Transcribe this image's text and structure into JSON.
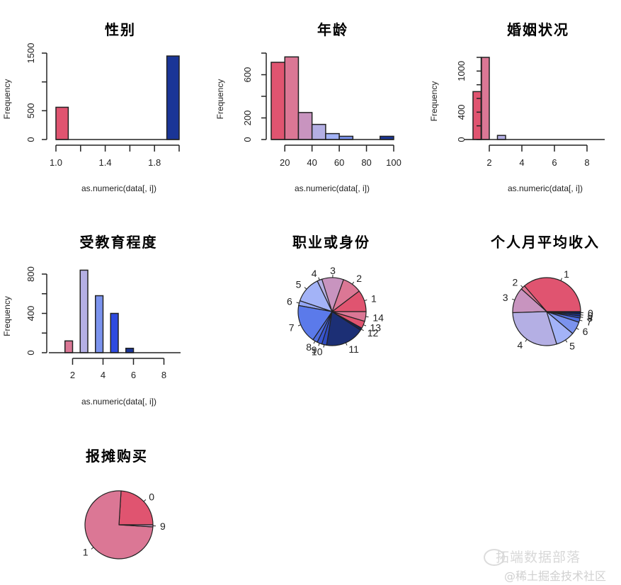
{
  "chart_data": [
    {
      "type": "bar",
      "subtype": "histogram",
      "title": "性别",
      "xlabel": "as.numeric(data[, i])",
      "ylabel": "Frequency",
      "bins": [
        [
          1.0,
          1.1
        ],
        [
          1.1,
          1.2
        ],
        [
          1.2,
          1.3
        ],
        [
          1.3,
          1.4
        ],
        [
          1.4,
          1.5
        ],
        [
          1.5,
          1.6
        ],
        [
          1.6,
          1.7
        ],
        [
          1.7,
          1.8
        ],
        [
          1.8,
          1.9
        ],
        [
          1.9,
          2.0
        ]
      ],
      "values": [
        560,
        0,
        0,
        0,
        0,
        0,
        0,
        0,
        0,
        1450
      ],
      "colors": [
        "#E05470",
        "#DB6F8F",
        "#D18AAE",
        "#BFA3CF",
        "#B3B2E6",
        "#A7B7F7",
        "#8199F0",
        "#5B7AEA",
        "#3652C9",
        "#1A3597"
      ],
      "xticks": [
        1.0,
        1.2,
        1.4,
        1.6,
        1.8,
        2.0
      ],
      "xtick_labels": [
        "1.0",
        "",
        "1.4",
        "",
        "1.8",
        ""
      ],
      "yticks": [
        0,
        500,
        1000,
        1500
      ],
      "ytick_labels": [
        "0",
        "500",
        "",
        "1500"
      ],
      "xlim": [
        1.0,
        2.0
      ],
      "ylim": [
        0,
        1500
      ]
    },
    {
      "type": "bar",
      "subtype": "histogram",
      "title": "年龄",
      "xlabel": "as.numeric(data[, i])",
      "ylabel": "Frequency",
      "bins": [
        [
          10,
          20
        ],
        [
          20,
          30
        ],
        [
          30,
          40
        ],
        [
          40,
          50
        ],
        [
          50,
          60
        ],
        [
          60,
          70
        ],
        [
          70,
          80
        ],
        [
          80,
          90
        ],
        [
          90,
          100
        ]
      ],
      "values": [
        715,
        765,
        250,
        140,
        55,
        30,
        0,
        0,
        30
      ],
      "colors": [
        "#E05470",
        "#DB7795",
        "#C894BF",
        "#B4AFE4",
        "#A3B3F7",
        "#7B93EE",
        "#4E6DE0",
        "#2F4BC0",
        "#1A3597"
      ],
      "xticks": [
        20,
        40,
        60,
        80,
        100
      ],
      "xtick_labels": [
        "20",
        "40",
        "60",
        "80",
        "100"
      ],
      "yticks": [
        0,
        200,
        400,
        600,
        800
      ],
      "ytick_labels": [
        "0",
        "200",
        "",
        "600",
        ""
      ],
      "xlim": [
        10,
        100
      ],
      "ylim": [
        0,
        800
      ]
    },
    {
      "type": "bar",
      "subtype": "histogram",
      "title": "婚姻状况",
      "xlabel": "as.numeric(data[, i])",
      "ylabel": "Frequency",
      "bins": [
        [
          1.0,
          1.5
        ],
        [
          1.5,
          2.0
        ],
        [
          2.0,
          2.5
        ],
        [
          2.5,
          3.0
        ],
        [
          3.0,
          3.5
        ],
        [
          3.5,
          4.0
        ],
        [
          4.0,
          4.5
        ],
        [
          4.5,
          5.0
        ],
        [
          5.0,
          5.5
        ],
        [
          5.5,
          6.0
        ],
        [
          6.0,
          6.5
        ],
        [
          6.5,
          7.0
        ],
        [
          7.0,
          7.5
        ],
        [
          7.5,
          8.0
        ],
        [
          8.0,
          8.5
        ],
        [
          8.5,
          9.0
        ]
      ],
      "values": [
        700,
        1200,
        0,
        60,
        0,
        0,
        0,
        0,
        0,
        0,
        0,
        0,
        0,
        0,
        0,
        0
      ],
      "colors": [
        "#E05470",
        "#DB7795",
        "#B4AFE4",
        "#B4AFE4",
        "#A3B3F7",
        "#A3B3F7",
        "#7B93EE",
        "#7B93EE",
        "#4E6DE0",
        "#4E6DE0",
        "#2F4BC0",
        "#2F4BC0",
        "#1A3597",
        "#1A3597",
        "#1A3597",
        "#1A3597"
      ],
      "xticks": [
        2,
        4,
        6,
        8
      ],
      "xtick_labels": [
        "2",
        "4",
        "6",
        "8"
      ],
      "yticks": [
        0,
        200,
        400,
        600,
        800,
        1000,
        1200
      ],
      "ytick_labels": [
        "0",
        "",
        "400",
        "",
        "",
        "1000",
        ""
      ],
      "xlim": [
        1,
        9
      ],
      "ylim": [
        0,
        1200
      ]
    },
    {
      "type": "bar",
      "subtype": "histogram",
      "title": "受教育程度",
      "xlabel": "as.numeric(data[, i])",
      "ylabel": "Frequency",
      "bins": [
        [
          1.5,
          2.0
        ],
        [
          2.0,
          2.5
        ],
        [
          2.5,
          3.0
        ],
        [
          3.0,
          3.5
        ],
        [
          3.5,
          4.0
        ],
        [
          4.0,
          4.5
        ],
        [
          4.5,
          5.0
        ],
        [
          5.0,
          5.5
        ],
        [
          5.5,
          6.0
        ],
        [
          6.0,
          6.5
        ],
        [
          6.5,
          7.0
        ],
        [
          7.0,
          7.5
        ],
        [
          7.5,
          8.0
        ],
        [
          8.0,
          8.5
        ],
        [
          8.5,
          9.0
        ]
      ],
      "values": [
        120,
        0,
        840,
        0,
        580,
        0,
        400,
        0,
        45,
        0,
        0,
        0,
        0,
        0,
        0
      ],
      "colors": [
        "#DB7795",
        "#000",
        "#B4AFE4",
        "#000",
        "#7B93EE",
        "#000",
        "#2F4BE0",
        "#000",
        "#1A3597",
        "#000",
        "#000",
        "#000",
        "#000",
        "#000",
        "#000"
      ],
      "xticks": [
        2,
        4,
        6,
        8
      ],
      "xtick_labels": [
        "2",
        "4",
        "6",
        "8"
      ],
      "yticks": [
        0,
        200,
        400,
        600,
        800
      ],
      "ytick_labels": [
        "0",
        "",
        "400",
        "",
        "800"
      ],
      "xlim": [
        1,
        9
      ],
      "ylim": [
        0,
        800
      ]
    },
    {
      "type": "pie",
      "title": "职业或身份",
      "labels": [
        "1",
        "2",
        "3",
        "4",
        "5",
        "6",
        "7",
        "8",
        "9",
        "10",
        "11",
        "12",
        "13",
        "14"
      ],
      "values": [
        9,
        8,
        9,
        2,
        11,
        2,
        16,
        2,
        2,
        2,
        16,
        1,
        3,
        4
      ],
      "colors": [
        "#E05470",
        "#DB7795",
        "#C894BF",
        "#B4AFE4",
        "#A3B3F7",
        "#93A6F5",
        "#5B7AEA",
        "#4E6DE0",
        "#3A57D2",
        "#2F4BC0",
        "#1C2F75",
        "#142355",
        "#E05470",
        "#DB7795"
      ]
    },
    {
      "type": "pie",
      "title": "个人月平均收入",
      "labels": [
        "1",
        "2",
        "3",
        "4",
        "5",
        "6",
        "7",
        "8",
        "9",
        "0"
      ],
      "values": [
        36,
        2,
        12,
        29,
        9,
        6,
        2,
        1,
        1,
        1
      ],
      "colors": [
        "#E05470",
        "#DB7795",
        "#C894BF",
        "#B4AFE4",
        "#A3B3F7",
        "#7B93EE",
        "#4E6DE0",
        "#2F4BC0",
        "#1A3597",
        "#0D1C55"
      ]
    },
    {
      "type": "pie",
      "title": "报摊购买",
      "labels": [
        "0",
        "1",
        "9"
      ],
      "values": [
        24,
        75,
        1
      ],
      "colors": [
        "#E05470",
        "#DB7795",
        "#C894BF"
      ]
    }
  ],
  "watermark": {
    "line1": "拓端数据部落",
    "line2": "@稀土掘金技术社区"
  }
}
